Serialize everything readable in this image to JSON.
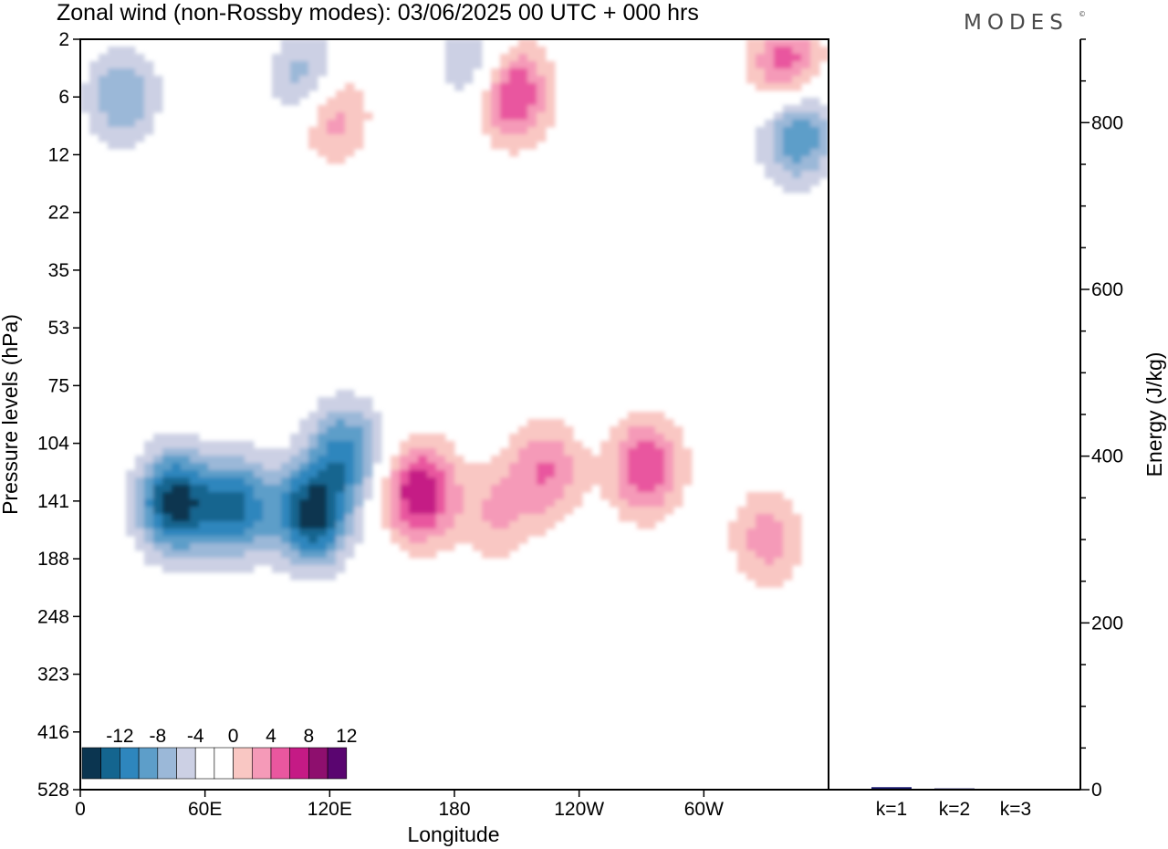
{
  "title": "Zonal wind (non-Rossby modes):  03/06/2025  00 UTC  + 000 hrs",
  "logo": "MODES",
  "logo_mark": "©",
  "chart_data": [
    {
      "type": "heatmap",
      "title": "Zonal wind (non-Rossby modes):  03/06/2025  00 UTC  + 000 hrs",
      "xlabel": "Longitude",
      "ylabel": "Pressure levels (hPa)",
      "x_ticks": [
        "0",
        "60E",
        "120E",
        "180",
        "120W",
        "60W"
      ],
      "x_tick_values": [
        0,
        60,
        120,
        180,
        240,
        300
      ],
      "xlim": [
        0,
        360
      ],
      "y_ticks": [
        "2",
        "6",
        "12",
        "22",
        "35",
        "53",
        "75",
        "104",
        "141",
        "188",
        "248",
        "323",
        "416",
        "528"
      ],
      "colorbar": {
        "labels": [
          "-12",
          "-8",
          "-4",
          "0",
          "4",
          "8",
          "12"
        ],
        "levels": [
          -14,
          -12,
          -10,
          -8,
          -6,
          -4,
          -2,
          0,
          2,
          4,
          6,
          8,
          10,
          12,
          14
        ],
        "colors": [
          "#0b3550",
          "#14658f",
          "#2e86bd",
          "#5d9ec9",
          "#9bb8d8",
          "#ccd0e4",
          "#ffffff",
          "#ffffff",
          "#f9c7c3",
          "#f59ab8",
          "#e9579f",
          "#c51a85",
          "#8e0f6e",
          "#5a0570"
        ]
      },
      "features": [
        {
          "lon": 45,
          "lev": 142,
          "value": -13
        },
        {
          "lon": 112,
          "lev": 150,
          "value": -13
        },
        {
          "lon": 75,
          "lev": 145,
          "value": -10
        },
        {
          "lon": 128,
          "lev": 108,
          "value": -8
        },
        {
          "lon": 163,
          "lev": 135,
          "value": 10
        },
        {
          "lon": 272,
          "lev": 118,
          "value": 8
        },
        {
          "lon": 224,
          "lev": 120,
          "value": 6
        },
        {
          "lon": 200,
          "lev": 150,
          "value": 4
        },
        {
          "lon": 330,
          "lev": 170,
          "value": 5
        },
        {
          "lon": 208,
          "lev": 5.5,
          "value": 9
        },
        {
          "lon": 340,
          "lev": 3.5,
          "value": 8
        },
        {
          "lon": 345,
          "lev": 9,
          "value": -9
        },
        {
          "lon": 20,
          "lev": 6,
          "value": -6
        },
        {
          "lon": 110,
          "lev": 4.5,
          "value": -7
        },
        {
          "lon": 120,
          "lev": 7,
          "value": 7
        },
        {
          "lon": 190,
          "lev": 3,
          "value": -5
        }
      ]
    },
    {
      "type": "bar",
      "categories": [
        "k=1",
        "k=2",
        "k=3"
      ],
      "values": [
        3,
        1.5,
        0.6
      ],
      "ylabel": "Energy (J/kg)",
      "ylim": [
        0,
        900
      ],
      "y_ticks": [
        "0",
        "200",
        "400",
        "600",
        "800"
      ],
      "bar_color": "#1a1a6e"
    }
  ]
}
